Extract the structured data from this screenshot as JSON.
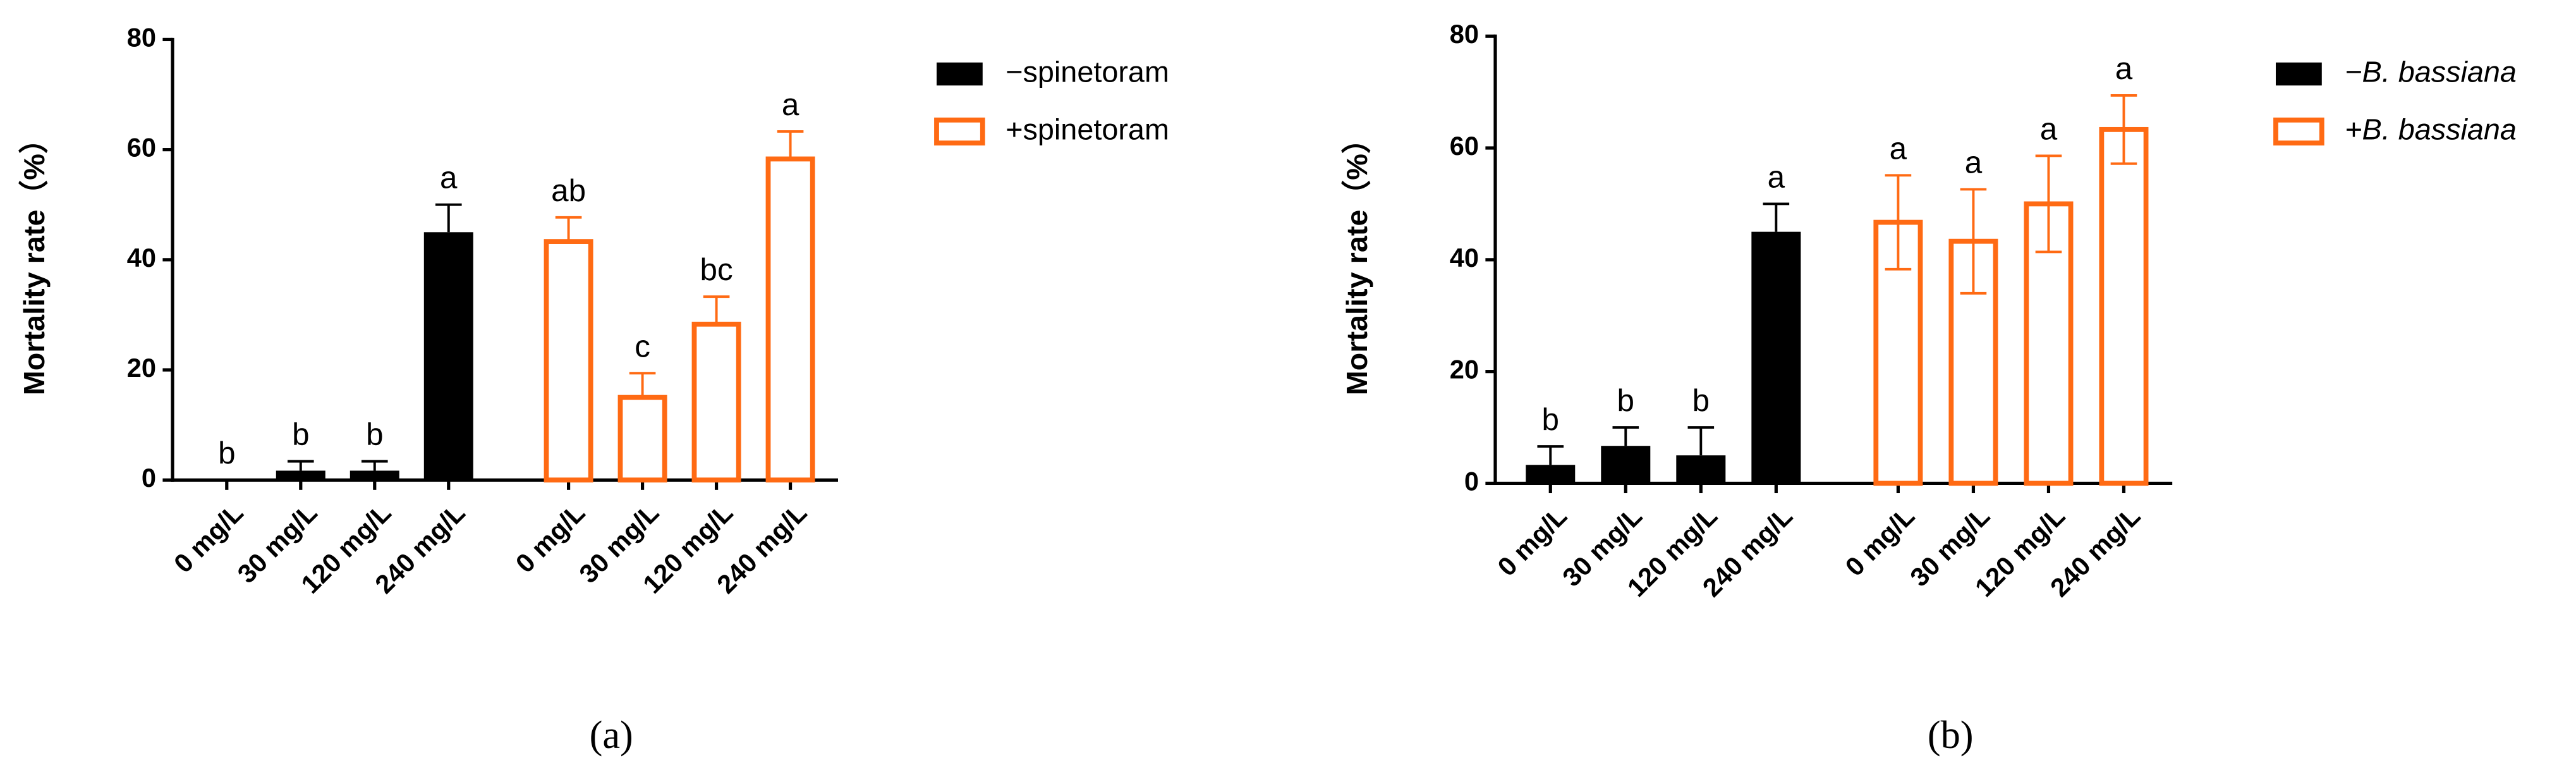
{
  "chart_data": [
    {
      "type": "bar",
      "caption": "(a)",
      "y_label": "Mortality rate（%）",
      "categories": [
        "0 mg/L",
        "30 mg/L",
        "120 mg/L",
        "240 mg/L",
        "0 mg/L",
        "30 mg/L",
        "120 mg/L",
        "240 mg/L"
      ],
      "series": [
        {
          "name": "−spinetoram",
          "color": "#000000",
          "style": "filled",
          "error_direction": "up",
          "values": [
            0,
            1.7,
            1.7,
            45,
            null,
            null,
            null,
            null
          ],
          "errors": [
            0,
            1.7,
            1.7,
            5,
            null,
            null,
            null,
            null
          ]
        },
        {
          "name": "+spinetoram",
          "color": "#ff6a13",
          "style": "outline",
          "error_direction": "up",
          "values": [
            null,
            null,
            null,
            null,
            43.3,
            15,
            28.3,
            58.3
          ],
          "errors": [
            null,
            null,
            null,
            null,
            4.4,
            4.4,
            5,
            5
          ]
        }
      ],
      "annotations": [
        "b",
        "b",
        "b",
        "a",
        "ab",
        "c",
        "bc",
        "a"
      ],
      "ylim": [
        0,
        80
      ],
      "yticks": [
        0,
        20,
        40,
        60,
        80
      ],
      "grid": false,
      "legend_italic": false
    },
    {
      "type": "bar",
      "caption": "(b)",
      "y_label": "Mortality rate（%）",
      "categories": [
        "0 mg/L",
        "30 mg/L",
        "120 mg/L",
        "240 mg/L",
        "0 mg/L",
        "30 mg/L",
        "120 mg/L",
        "240 mg/L"
      ],
      "series": [
        {
          "name": "−B. bassiana",
          "color": "#000000",
          "style": "filled",
          "error_direction": "up",
          "values": [
            3.3,
            6.7,
            5,
            45,
            null,
            null,
            null,
            null
          ],
          "errors": [
            3.3,
            3.3,
            5,
            5,
            null,
            null,
            null,
            null
          ]
        },
        {
          "name": "+B. bassiana",
          "color": "#ff6a13",
          "style": "outline",
          "error_direction": "both",
          "values": [
            null,
            null,
            null,
            null,
            46.7,
            43.3,
            50,
            63.3
          ],
          "errors": [
            null,
            null,
            null,
            null,
            8.4,
            9.3,
            8.6,
            6.1
          ]
        }
      ],
      "annotations": [
        "b",
        "b",
        "b",
        "a",
        "a",
        "a",
        "a",
        "a"
      ],
      "ylim": [
        0,
        80
      ],
      "yticks": [
        0,
        20,
        40,
        60,
        80
      ],
      "grid": false,
      "legend_italic": true
    }
  ]
}
